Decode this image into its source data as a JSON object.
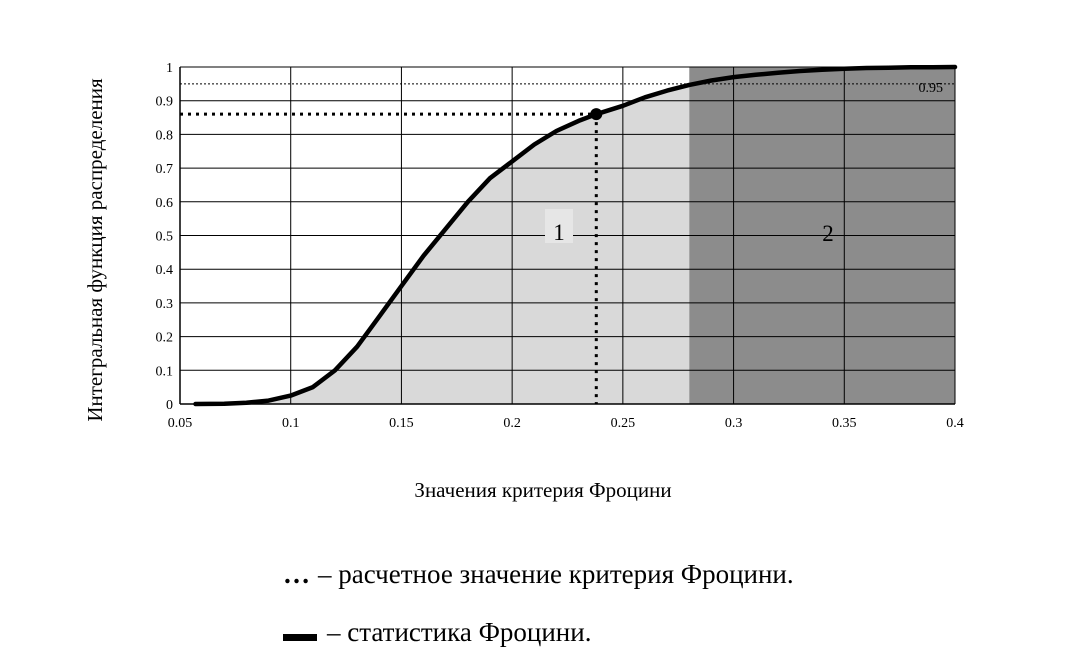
{
  "chart_data": {
    "type": "line",
    "title": "",
    "xlabel": "Значения критерия Фроцини",
    "ylabel": "Интегральная функция распределения",
    "xlim": [
      0.05,
      0.4
    ],
    "ylim": [
      0,
      1
    ],
    "x_ticks": [
      "0.05",
      "0.1",
      "0.15",
      "0.2",
      "0.25",
      "0.3",
      "0.35",
      "0.4"
    ],
    "y_ticks": [
      "0",
      "0.1",
      "0.2",
      "0.3",
      "0.4",
      "0.5",
      "0.6",
      "0.7",
      "0.8",
      "0.9",
      "1"
    ],
    "grid": true,
    "series": [
      {
        "x": [
          0.057,
          0.07,
          0.08,
          0.09,
          0.1,
          0.11,
          0.12,
          0.13,
          0.14,
          0.15,
          0.16,
          0.17,
          0.18,
          0.19,
          0.2,
          0.21,
          0.22,
          0.23,
          0.238,
          0.25,
          0.26,
          0.27,
          0.28,
          0.29,
          0.3,
          0.31,
          0.32,
          0.33,
          0.34,
          0.35,
          0.36,
          0.37,
          0.38,
          0.39,
          0.4
        ],
        "y": [
          0.0,
          0.001,
          0.004,
          0.01,
          0.025,
          0.05,
          0.1,
          0.17,
          0.26,
          0.35,
          0.44,
          0.52,
          0.6,
          0.67,
          0.72,
          0.77,
          0.81,
          0.84,
          0.86,
          0.885,
          0.91,
          0.93,
          0.947,
          0.96,
          0.97,
          0.977,
          0.983,
          0.988,
          0.992,
          0.995,
          0.997,
          0.998,
          0.999,
          0.999,
          1.0
        ]
      }
    ],
    "computed_point": {
      "x": 0.238,
      "y": 0.86
    },
    "reference_line": {
      "y": 0.95,
      "label": "0.95"
    },
    "regions": [
      {
        "label": "1",
        "x_from": 0.057,
        "x_to": 0.28,
        "color": "#d9d9d9"
      },
      {
        "label": "2",
        "x_from": 0.28,
        "x_to": 0.4,
        "color": "#8c8c8c"
      }
    ]
  },
  "legend": {
    "dotted_symbol": "…",
    "dotted_text": "– расчетное значение критерия Фроцини.",
    "line_text": "– статистика Фроцини."
  }
}
